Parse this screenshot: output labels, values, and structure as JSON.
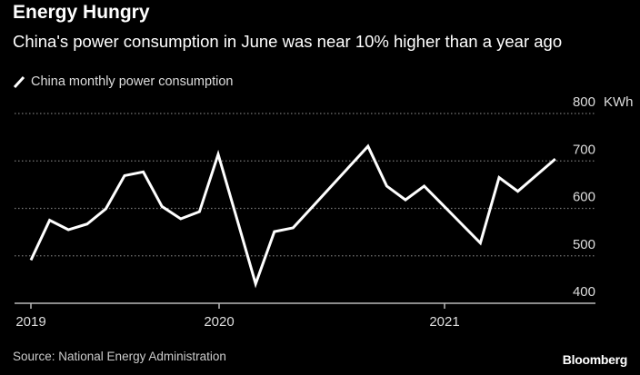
{
  "chart_data": {
    "type": "line",
    "title": "Energy Hungry",
    "subtitle": "China's power consumption in June was near 10% higher than a year ago",
    "series": [
      {
        "name": "China monthly power consumption",
        "color": "#ffffff",
        "values": [
          491,
          575,
          555,
          567,
          599,
          669,
          677,
          604,
          578,
          593,
          714,
          578,
          441,
          551,
          559,
          602,
          645,
          688,
          731,
          647,
          618,
          647,
          607,
          567,
          527,
          665,
          636,
          670,
          704
        ]
      }
    ],
    "x_ticks": [
      {
        "label": "2019",
        "index": 0
      },
      {
        "label": "2020",
        "index": 10
      },
      {
        "label": "2021",
        "index": 22
      }
    ],
    "y_ticks": [
      400,
      500,
      600,
      700,
      800
    ],
    "y_unit": "KWh",
    "ylim": [
      400,
      800
    ],
    "grid": true,
    "legend_position": "top-left",
    "background": "#000000"
  },
  "source": "Source: National Energy Administration",
  "brand": "Bloomberg"
}
